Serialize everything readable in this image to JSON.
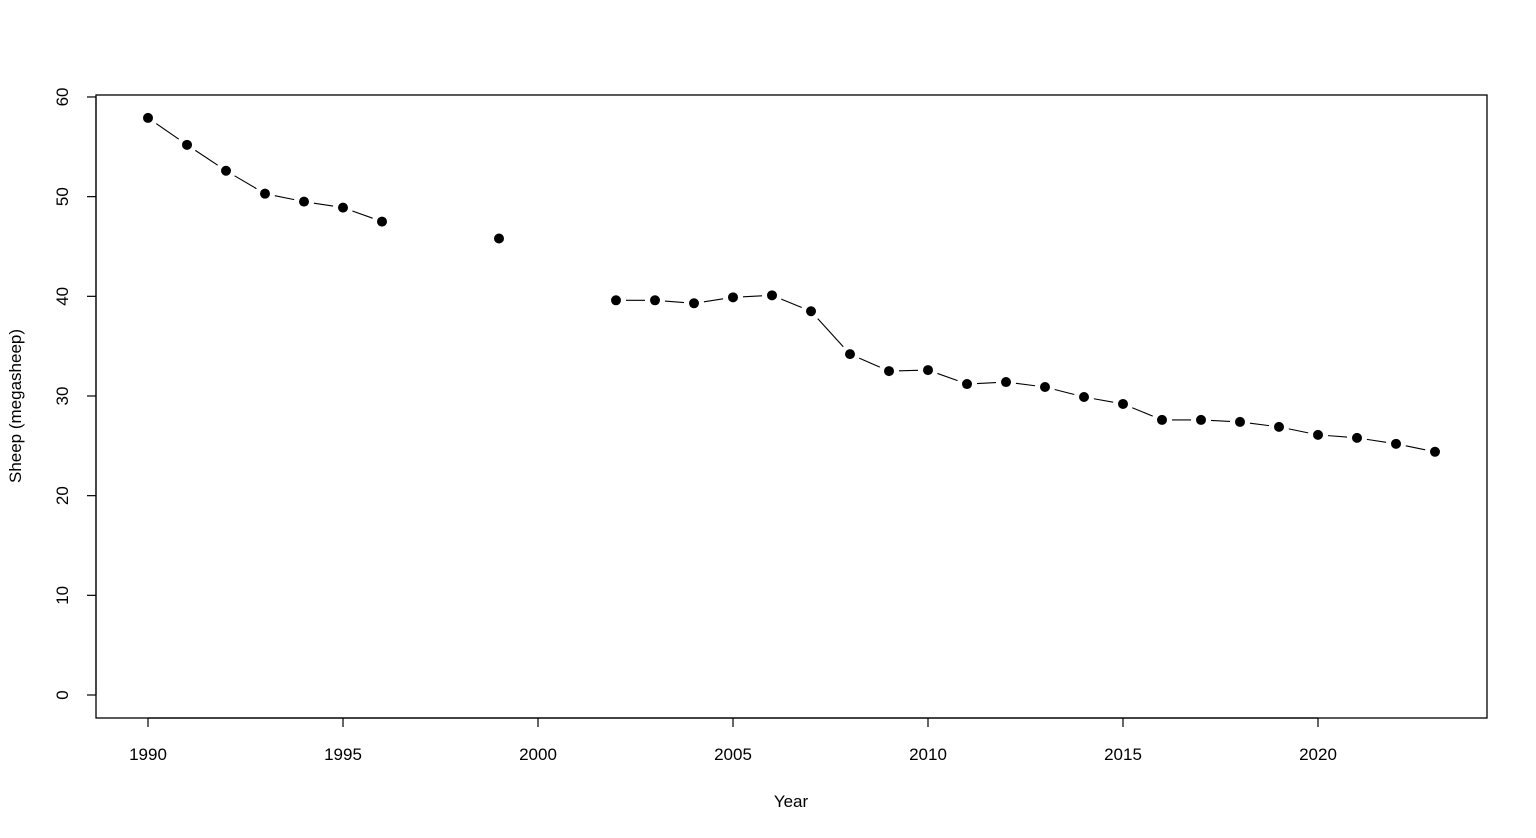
{
  "chart_data": {
    "type": "line",
    "title": "",
    "xlabel": "Year",
    "ylabel": "Sheep (megasheep)",
    "xlim": [
      1989.3,
      2023.7
    ],
    "ylim": [
      -2.3,
      60.2
    ],
    "xticks": [
      1990,
      1995,
      2000,
      2005,
      2010,
      2015,
      2020
    ],
    "yticks": [
      0,
      10,
      20,
      30,
      40,
      50,
      60
    ],
    "grid": false,
    "markers": "filled-circle",
    "line_style": "points-and-lines",
    "color": "#000000",
    "x": [
      1990,
      1991,
      1992,
      1993,
      1994,
      1995,
      1996,
      1997,
      1998,
      1999,
      2000,
      2001,
      2002,
      2003,
      2004,
      2005,
      2006,
      2007,
      2008,
      2009,
      2010,
      2011,
      2012,
      2013,
      2014,
      2015,
      2016,
      2017,
      2018,
      2019,
      2020,
      2021,
      2022,
      2023
    ],
    "y": [
      57.9,
      55.2,
      52.6,
      50.3,
      49.5,
      48.9,
      47.5,
      null,
      null,
      45.8,
      null,
      null,
      39.6,
      39.6,
      39.3,
      39.9,
      40.1,
      38.5,
      34.2,
      32.5,
      32.6,
      31.2,
      31.4,
      30.9,
      29.9,
      29.2,
      27.6,
      27.6,
      27.4,
      26.9,
      26.1,
      25.8,
      25.2,
      24.4
    ]
  }
}
